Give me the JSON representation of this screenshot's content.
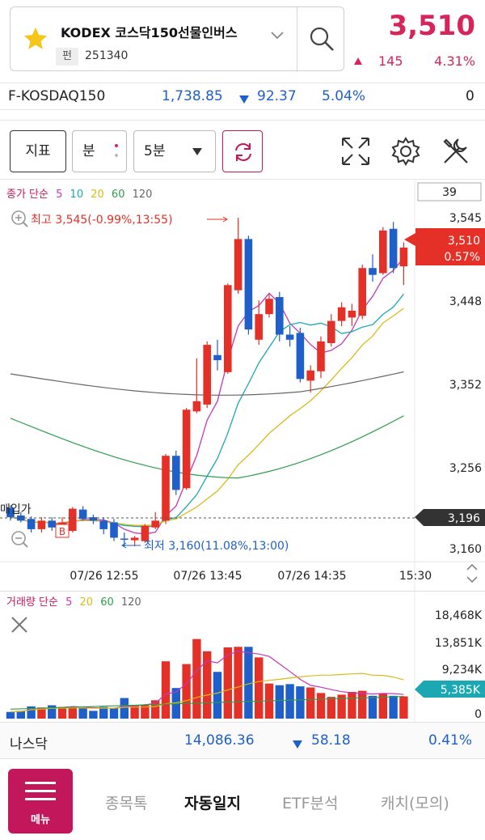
{
  "header": {
    "stock_name": "KODEX 코스닥150선물인버스",
    "market_badge": "펀",
    "stock_code": "251340",
    "price": "3,510",
    "change": "145",
    "change_pct": "4.31%"
  },
  "index_bar": {
    "name": "F-KOSDAQ150",
    "value": "1,738.85",
    "change": "92.37",
    "change_pct": "5.04%",
    "extra": "0"
  },
  "toolbar": {
    "indicator_label": "지표",
    "minute_label": "분",
    "interval_select": "5분"
  },
  "price_chart": {
    "legend": {
      "prefix": "종가 단순",
      "ma": [
        "5",
        "10",
        "20",
        "60",
        "120"
      ]
    },
    "counter": "39",
    "high_label": "최고 3,545(-0.99%,13:55)",
    "low_label": "최저 3,160(11.08%,13:00)",
    "buy_price_label": "매입가",
    "buy_marker": "B",
    "current_tag_price": "3,510",
    "current_tag_pct": "0.57%",
    "buy_price_tag": "3,196",
    "y_ticks": [
      "3,545",
      "3,448",
      "3,352",
      "3,256",
      "3,160"
    ],
    "x_ticks": [
      "07/26 12:55",
      "07/26 13:45",
      "07/26 14:35",
      "15:30"
    ]
  },
  "volume_chart": {
    "legend": {
      "prefix": "거래량 단순",
      "ma": [
        "5",
        "20",
        "60",
        "120"
      ]
    },
    "y_ticks": [
      "18,468K",
      "13,851K",
      "9,234K",
      "0"
    ],
    "current_tag": "5,385K"
  },
  "nasdaq_bar": {
    "name": "나스닥",
    "value": "14,086.36",
    "change": "58.18",
    "change_pct": "0.41%"
  },
  "bottom_nav": {
    "menu_label": "메뉴",
    "items": [
      "종목톡",
      "자동일지",
      "ETF분석",
      "캐치(모의)"
    ]
  },
  "colors": {
    "accent": "#c2185b",
    "up": "#e53027",
    "down": "#1f5fc9",
    "ma5": "#c238b8",
    "ma10": "#1ba8b3",
    "ma20": "#d9bb1a",
    "ma60": "#2e9c4c",
    "ma120": "#666666"
  },
  "chart_data": {
    "type": "candlestick",
    "title": "",
    "ylim": [
      3160,
      3545
    ],
    "x_labels": [
      "07/26 12:55",
      "07/26 13:45",
      "07/26 14:35",
      "15:30"
    ],
    "candles": [
      {
        "o": 3205,
        "h": 3208,
        "l": 3190,
        "c": 3194
      },
      {
        "o": 3196,
        "h": 3200,
        "l": 3188,
        "c": 3190
      },
      {
        "o": 3192,
        "h": 3195,
        "l": 3176,
        "c": 3180
      },
      {
        "o": 3180,
        "h": 3194,
        "l": 3176,
        "c": 3190
      },
      {
        "o": 3190,
        "h": 3194,
        "l": 3178,
        "c": 3182
      },
      {
        "o": 3180,
        "h": 3194,
        "l": 3176,
        "c": 3188
      },
      {
        "o": 3178,
        "h": 3206,
        "l": 3176,
        "c": 3204
      },
      {
        "o": 3203,
        "h": 3207,
        "l": 3190,
        "c": 3192
      },
      {
        "o": 3194,
        "h": 3197,
        "l": 3186,
        "c": 3190
      },
      {
        "o": 3190,
        "h": 3194,
        "l": 3174,
        "c": 3180
      },
      {
        "o": 3188,
        "h": 3192,
        "l": 3166,
        "c": 3170
      },
      {
        "o": 3169,
        "h": 3176,
        "l": 3160,
        "c": 3168
      },
      {
        "o": 3167,
        "h": 3172,
        "l": 3160,
        "c": 3170
      },
      {
        "o": 3166,
        "h": 3186,
        "l": 3164,
        "c": 3184
      },
      {
        "o": 3182,
        "h": 3200,
        "l": 3180,
        "c": 3190
      },
      {
        "o": 3190,
        "h": 3268,
        "l": 3186,
        "c": 3266
      },
      {
        "o": 3266,
        "h": 3272,
        "l": 3220,
        "c": 3226
      },
      {
        "o": 3228,
        "h": 3322,
        "l": 3226,
        "c": 3320
      },
      {
        "o": 3318,
        "h": 3380,
        "l": 3316,
        "c": 3330
      },
      {
        "o": 3326,
        "h": 3400,
        "l": 3322,
        "c": 3396
      },
      {
        "o": 3384,
        "h": 3402,
        "l": 3366,
        "c": 3378
      },
      {
        "o": 3364,
        "h": 3468,
        "l": 3362,
        "c": 3466
      },
      {
        "o": 3460,
        "h": 3545,
        "l": 3456,
        "c": 3520
      },
      {
        "o": 3520,
        "h": 3524,
        "l": 3408,
        "c": 3414
      },
      {
        "o": 3402,
        "h": 3448,
        "l": 3396,
        "c": 3432
      },
      {
        "o": 3432,
        "h": 3456,
        "l": 3428,
        "c": 3450
      },
      {
        "o": 3452,
        "h": 3458,
        "l": 3400,
        "c": 3408
      },
      {
        "o": 3408,
        "h": 3418,
        "l": 3394,
        "c": 3402
      },
      {
        "o": 3410,
        "h": 3416,
        "l": 3352,
        "c": 3356
      },
      {
        "o": 3354,
        "h": 3372,
        "l": 3340,
        "c": 3366
      },
      {
        "o": 3365,
        "h": 3406,
        "l": 3357,
        "c": 3400
      },
      {
        "o": 3398,
        "h": 3432,
        "l": 3394,
        "c": 3424
      },
      {
        "o": 3424,
        "h": 3446,
        "l": 3418,
        "c": 3440
      },
      {
        "o": 3428,
        "h": 3444,
        "l": 3418,
        "c": 3436
      },
      {
        "o": 3430,
        "h": 3490,
        "l": 3426,
        "c": 3486
      },
      {
        "o": 3486,
        "h": 3502,
        "l": 3470,
        "c": 3478
      },
      {
        "o": 3480,
        "h": 3534,
        "l": 3478,
        "c": 3530
      },
      {
        "o": 3532,
        "h": 3540,
        "l": 3480,
        "c": 3486
      },
      {
        "o": 3488,
        "h": 3516,
        "l": 3466,
        "c": 3510
      }
    ],
    "volume": [
      1200,
      1400,
      2200,
      2000,
      2400,
      2100,
      2100,
      1900,
      1400,
      2100,
      1900,
      3700,
      2400,
      2400,
      3300,
      10300,
      5500,
      9800,
      14300,
      12100,
      8400,
      12800,
      12900,
      12900,
      11000,
      6300,
      6000,
      6200,
      5800,
      5600,
      4600,
      3900,
      4300,
      4800,
      5000,
      4100,
      4500,
      4100,
      4000
    ]
  }
}
